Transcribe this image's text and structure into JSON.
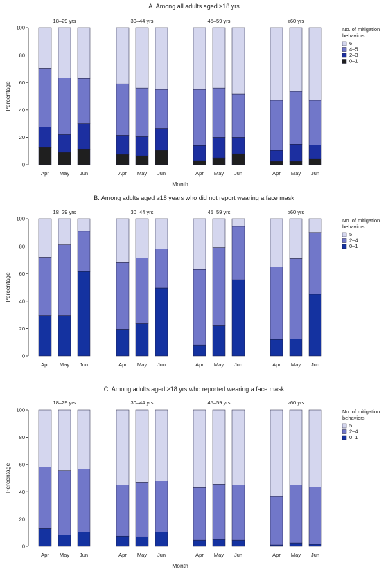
{
  "chart_data": [
    {
      "type": "bar",
      "stacked": true,
      "title": "A. Among all adults aged ≥18 yrs",
      "xlabel": "Month",
      "ylabel": "Percentage",
      "ylim": [
        0,
        100
      ],
      "yticks": [
        0,
        20,
        40,
        60,
        80,
        100
      ],
      "groups": [
        "18–29 yrs",
        "30–44 yrs",
        "45–59 yrs",
        "≥60 yrs"
      ],
      "categories": [
        "Apr",
        "May",
        "Jun"
      ],
      "legend_title": "No. of mitigation behaviors",
      "legend_position": "right",
      "series": [
        {
          "name": "0–1",
          "color": "#1f1f1f",
          "values": [
            [
              12.5,
              9,
              11.5
            ],
            [
              7.5,
              6.5,
              10.5
            ],
            [
              3,
              5,
              8
            ],
            [
              2.5,
              2.5,
              4.5
            ]
          ]
        },
        {
          "name": "2–3",
          "color": "#1c2fa0",
          "values": [
            [
              15,
              13,
              18.5
            ],
            [
              14,
              14,
              16
            ],
            [
              11,
              15,
              12
            ],
            [
              8,
              12.5,
              10
            ]
          ]
        },
        {
          "name": "4–5",
          "color": "#7177c9",
          "values": [
            [
              43,
              41.5,
              33
            ],
            [
              37.5,
              35.5,
              28.5
            ],
            [
              41,
              36,
              31.5
            ],
            [
              36.5,
              38.5,
              32.5
            ]
          ]
        },
        {
          "name": "6",
          "color": "#d4d6ee",
          "values": [
            [
              29.5,
              36.5,
              37
            ],
            [
              41,
              44,
              45
            ],
            [
              45,
              44,
              48.5
            ],
            [
              53,
              46.5,
              53
            ]
          ]
        }
      ]
    },
    {
      "type": "bar",
      "stacked": true,
      "title": "B. Among adults aged ≥18 years who did not report wearing a face mask",
      "xlabel": "",
      "ylabel": "Percentage",
      "ylim": [
        0,
        100
      ],
      "yticks": [
        0,
        20,
        40,
        60,
        80,
        100
      ],
      "groups": [
        "18–29 yrs",
        "30–44 yrs",
        "45–59 yrs",
        "≥60 yrs"
      ],
      "categories": [
        "Apr",
        "May",
        "Jun"
      ],
      "legend_title": "No. of mitigation behaviors",
      "legend_position": "right",
      "series": [
        {
          "name": "0–1",
          "color": "#1432a0",
          "values": [
            [
              29.5,
              29.5,
              61.5
            ],
            [
              19.5,
              23.5,
              49.5
            ],
            [
              8,
              22,
              55.5
            ],
            [
              12,
              12.5,
              45
            ]
          ]
        },
        {
          "name": "2–4",
          "color": "#7177c9",
          "values": [
            [
              42.5,
              51.5,
              29.5
            ],
            [
              48.5,
              48,
              28.5
            ],
            [
              55,
              57,
              39
            ],
            [
              53,
              58.5,
              45
            ]
          ]
        },
        {
          "name": "5",
          "color": "#d4d6ee",
          "values": [
            [
              28,
              19,
              9
            ],
            [
              32,
              28.5,
              22
            ],
            [
              37,
              21,
              5.5
            ],
            [
              35,
              29,
              10
            ]
          ]
        }
      ]
    },
    {
      "type": "bar",
      "stacked": true,
      "title": "C. Among adults aged ≥18 yrs who reported wearing a face mask",
      "xlabel": "Month",
      "ylabel": "Percentage",
      "ylim": [
        0,
        100
      ],
      "yticks": [
        0,
        20,
        40,
        60,
        80,
        100
      ],
      "groups": [
        "18–29 yrs",
        "30–44 yrs",
        "45–59 yrs",
        "≥60 yrs"
      ],
      "categories": [
        "Apr",
        "May",
        "Jun"
      ],
      "legend_title": "No. of mitigation behaviors",
      "legend_position": "right",
      "series": [
        {
          "name": "0–1",
          "color": "#1432a0",
          "values": [
            [
              13,
              8.5,
              10.5
            ],
            [
              7.5,
              7,
              10.5
            ],
            [
              4.5,
              5,
              4.5
            ],
            [
              1,
              2.5,
              1.5
            ]
          ]
        },
        {
          "name": "2–4",
          "color": "#7177c9",
          "values": [
            [
              45,
              47,
              46
            ],
            [
              37.5,
              40,
              37.5
            ],
            [
              38.5,
              40.5,
              40.5
            ],
            [
              35.5,
              42.5,
              42
            ]
          ]
        },
        {
          "name": "5",
          "color": "#d4d6ee",
          "values": [
            [
              42,
              44.5,
              43.5
            ],
            [
              55,
              53,
              52
            ],
            [
              57,
              54.5,
              55
            ],
            [
              63.5,
              55,
              56.5
            ]
          ]
        }
      ]
    }
  ]
}
